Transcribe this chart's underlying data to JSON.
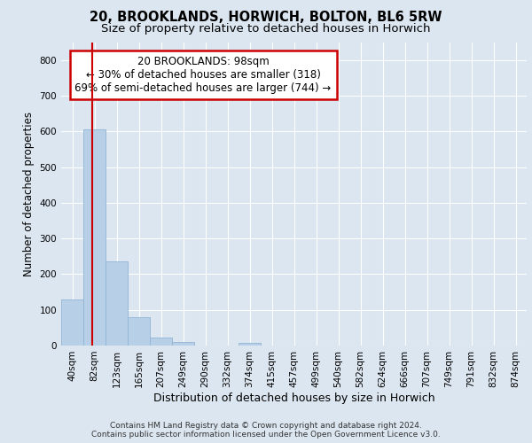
{
  "title_line1": "20, BROOKLANDS, HORWICH, BOLTON, BL6 5RW",
  "title_line2": "Size of property relative to detached houses in Horwich",
  "xlabel": "Distribution of detached houses by size in Horwich",
  "ylabel": "Number of detached properties",
  "bar_labels": [
    "40sqm",
    "82sqm",
    "123sqm",
    "165sqm",
    "207sqm",
    "249sqm",
    "290sqm",
    "332sqm",
    "374sqm",
    "415sqm",
    "457sqm",
    "499sqm",
    "540sqm",
    "582sqm",
    "624sqm",
    "666sqm",
    "707sqm",
    "749sqm",
    "791sqm",
    "832sqm",
    "874sqm"
  ],
  "bar_values": [
    130,
    605,
    237,
    80,
    22,
    10,
    0,
    0,
    8,
    0,
    0,
    0,
    0,
    0,
    0,
    0,
    0,
    0,
    0,
    0,
    0
  ],
  "bar_color": "#b8cfe8",
  "bar_edge_color": "#92b4d4",
  "marker_color": "#cc0000",
  "annotation_lines": [
    "20 BROOKLANDS: 98sqm",
    "← 30% of detached houses are smaller (318)",
    "69% of semi-detached houses are larger (744) →"
  ],
  "annotation_box_facecolor": "#ffffff",
  "annotation_box_edgecolor": "#cc0000",
  "ylim": [
    0,
    850
  ],
  "yticks": [
    0,
    100,
    200,
    300,
    400,
    500,
    600,
    700,
    800
  ],
  "bg_color": "#dce6f0",
  "plot_bg_color": "#dce6f0",
  "footer_line1": "Contains HM Land Registry data © Crown copyright and database right 2024.",
  "footer_line2": "Contains public sector information licensed under the Open Government Licence v3.0.",
  "title_fontsize": 10.5,
  "subtitle_fontsize": 9.5,
  "xlabel_fontsize": 9,
  "ylabel_fontsize": 8.5,
  "tick_fontsize": 7.5,
  "footer_fontsize": 6.5,
  "annotation_fontsize": 8.5
}
